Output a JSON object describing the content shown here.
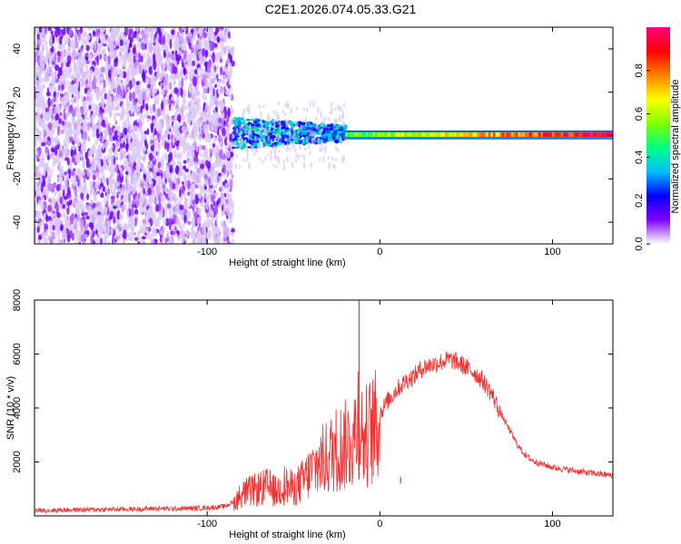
{
  "page_title": "C2E1.2026.074.05.33.G21",
  "chart_data": [
    {
      "type": "heatmap",
      "xlabel": "Height of straight line (km)",
      "ylabel": "Frequency (Hz)",
      "xlim": [
        -200,
        135
      ],
      "ylim": [
        -50,
        50
      ],
      "x_ticks": [
        -100,
        0,
        100
      ],
      "x_tick_labels": [
        "-100",
        "0",
        "100"
      ],
      "y_ticks": [
        -40,
        -20,
        0,
        20,
        40
      ],
      "y_tick_labels": [
        "-40",
        "-20",
        "0",
        "20",
        "40"
      ],
      "colorbar": {
        "label": "Normalized spectral amplitude",
        "range": [
          0,
          1
        ],
        "ticks": [
          0,
          0.2,
          0.4,
          0.6,
          0.8
        ],
        "tick_labels": [
          "0.0",
          "0.2",
          "0.4",
          "0.6",
          "0.8"
        ],
        "colormap": [
          "#ffffff",
          "#7f00ff",
          "#0000ff",
          "#00c0ff",
          "#00ff80",
          "#80ff00",
          "#ffff00",
          "#ff8000",
          "#ff0000",
          "#ff0080"
        ]
      },
      "regions": [
        {
          "x_range": [
            -200,
            -85
          ],
          "freq_range": [
            -50,
            50
          ],
          "amplitude_range": [
            0.0,
            0.15
          ]
        },
        {
          "x_range": [
            -85,
            -20
          ],
          "freq_range": [
            -6,
            8
          ],
          "amplitude_range": [
            0.15,
            0.45
          ]
        },
        {
          "x_range": [
            -20,
            135
          ],
          "freq_range": [
            -2,
            3
          ],
          "amplitude_range": [
            0.4,
            1.0
          ]
        }
      ]
    },
    {
      "type": "line",
      "xlabel": "Height of straight line (km)",
      "ylabel": "SNR (10 * v/v)",
      "xlim": [
        -200,
        135
      ],
      "ylim": [
        0,
        8000
      ],
      "x_ticks": [
        -100,
        0,
        100
      ],
      "x_tick_labels": [
        "-100",
        "0",
        "100"
      ],
      "y_ticks": [
        2000,
        4000,
        6000,
        8000
      ],
      "y_tick_labels": [
        "2000",
        "4000",
        "6000",
        "8000"
      ],
      "color": "#ee3333",
      "series": [
        {
          "x": [
            -200,
            -180,
            -160,
            -140,
            -130,
            -120,
            -110,
            -100,
            -90,
            -85,
            -80,
            -75,
            -70,
            -65,
            -60,
            -55,
            -50,
            -45,
            -40,
            -35,
            -30,
            -25,
            -20,
            -15,
            -12,
            -10,
            -8,
            -5,
            0,
            5,
            10,
            15,
            20,
            25,
            30,
            35,
            40,
            45,
            50,
            55,
            60,
            65,
            70,
            75,
            80,
            85,
            90,
            95,
            100,
            110,
            120,
            135
          ],
          "values": [
            200,
            220,
            240,
            250,
            280,
            260,
            280,
            300,
            350,
            500,
            900,
            1000,
            1100,
            1200,
            1000,
            1300,
            1100,
            1400,
            1800,
            2200,
            2400,
            2800,
            2900,
            3200,
            4500,
            3000,
            3300,
            3500,
            3800,
            4300,
            4700,
            5000,
            5200,
            5500,
            5600,
            5700,
            5800,
            5700,
            5500,
            5300,
            5000,
            4500,
            3800,
            3200,
            2600,
            2200,
            2000,
            1900,
            1800,
            1700,
            1600,
            1500
          ]
        }
      ],
      "spikes": [
        {
          "x": -12,
          "value": 8000
        },
        {
          "x": 12,
          "value": 1200
        }
      ]
    }
  ]
}
